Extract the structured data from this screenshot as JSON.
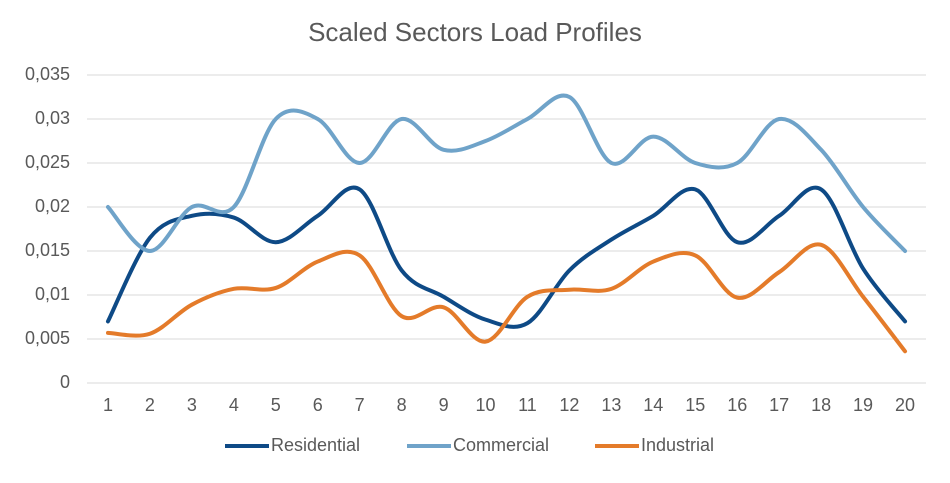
{
  "chart_data": {
    "type": "line",
    "title": "Scaled Sectors Load Profiles",
    "categories": [
      1,
      2,
      3,
      4,
      5,
      6,
      7,
      8,
      9,
      10,
      11,
      12,
      13,
      14,
      15,
      16,
      17,
      18,
      19,
      20
    ],
    "series": [
      {
        "name": "Residential",
        "color": "#0e4a86",
        "values": [
          0.007,
          0.0165,
          0.019,
          0.0188,
          0.016,
          0.019,
          0.022,
          0.0128,
          0.0098,
          0.0072,
          0.0068,
          0.0128,
          0.0163,
          0.019,
          0.022,
          0.016,
          0.019,
          0.022,
          0.013,
          0.007
        ]
      },
      {
        "name": "Commercial",
        "color": "#6fa3c9",
        "values": [
          0.02,
          0.015,
          0.02,
          0.02,
          0.03,
          0.03,
          0.025,
          0.03,
          0.0265,
          0.0275,
          0.03,
          0.0325,
          0.025,
          0.028,
          0.025,
          0.025,
          0.03,
          0.0265,
          0.02,
          0.015
        ]
      },
      {
        "name": "Industrial",
        "color": "#e47b2a",
        "values": [
          0.0057,
          0.0056,
          0.0089,
          0.0107,
          0.0108,
          0.0138,
          0.0145,
          0.0076,
          0.0086,
          0.0047,
          0.0098,
          0.0106,
          0.0107,
          0.0138,
          0.0145,
          0.0097,
          0.0126,
          0.0157,
          0.0098,
          0.0036
        ]
      }
    ],
    "ylim": [
      0,
      0.035
    ],
    "yticks": [
      0,
      {
        "value": 0.005,
        "label": "0,005"
      },
      {
        "value": 0.01,
        "label": "0,01"
      },
      {
        "value": 0.015,
        "label": "0,015"
      },
      {
        "value": 0.02,
        "label": "0,02"
      },
      {
        "value": 0.025,
        "label": "0,025"
      },
      {
        "value": 0.03,
        "label": "0,03"
      },
      {
        "value": 0.035,
        "label": "0,035"
      }
    ],
    "grid": true,
    "smooth": true,
    "legend": "bottom"
  }
}
